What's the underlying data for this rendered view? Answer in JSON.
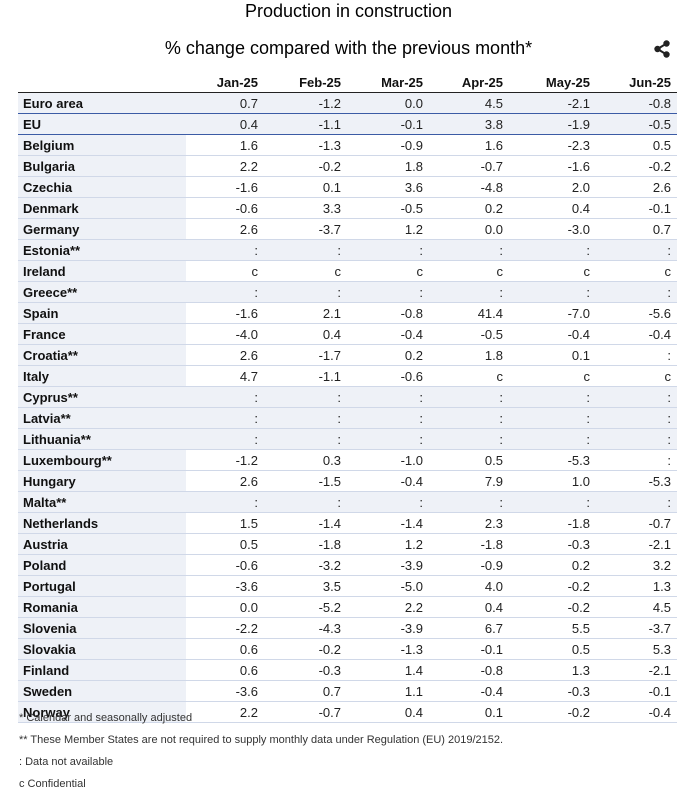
{
  "chart_data": {
    "type": "table",
    "title": "Production in construction",
    "subtitle": "% change compared with the previous month*",
    "columns": [
      "Jan-25",
      "Feb-25",
      "Mar-25",
      "Apr-25",
      "May-25",
      "Jun-25"
    ],
    "rows": [
      {
        "label": "Euro area",
        "values": [
          "0.7",
          "-1.2",
          "0.0",
          "4.5",
          "-2.1",
          "-0.8"
        ]
      },
      {
        "label": "EU",
        "values": [
          "0.4",
          "-1.1",
          "-0.1",
          "3.8",
          "-1.9",
          "-0.5"
        ]
      },
      {
        "label": "Belgium",
        "values": [
          "1.6",
          "-1.3",
          "-0.9",
          "1.6",
          "-2.3",
          "0.5"
        ]
      },
      {
        "label": "Bulgaria",
        "values": [
          "2.2",
          "-0.2",
          "1.8",
          "-0.7",
          "-1.6",
          "-0.2"
        ]
      },
      {
        "label": "Czechia",
        "values": [
          "-1.6",
          "0.1",
          "3.6",
          "-4.8",
          "2.0",
          "2.6"
        ]
      },
      {
        "label": "Denmark",
        "values": [
          "-0.6",
          "3.3",
          "-0.5",
          "0.2",
          "0.4",
          "-0.1"
        ]
      },
      {
        "label": "Germany",
        "values": [
          "2.6",
          "-3.7",
          "1.2",
          "0.0",
          "-3.0",
          "0.7"
        ]
      },
      {
        "label": "Estonia**",
        "values": [
          ":",
          ":",
          ":",
          ":",
          ":",
          ":"
        ]
      },
      {
        "label": "Ireland",
        "values": [
          "c",
          "c",
          "c",
          "c",
          "c",
          "c"
        ]
      },
      {
        "label": "Greece**",
        "values": [
          ":",
          ":",
          ":",
          ":",
          ":",
          ":"
        ]
      },
      {
        "label": "Spain",
        "values": [
          "-1.6",
          "2.1",
          "-0.8",
          "41.4",
          "-7.0",
          "-5.6"
        ]
      },
      {
        "label": "France",
        "values": [
          "-4.0",
          "0.4",
          "-0.4",
          "-0.5",
          "-0.4",
          "-0.4"
        ]
      },
      {
        "label": "Croatia**",
        "values": [
          "2.6",
          "-1.7",
          "0.2",
          "1.8",
          "0.1",
          ":"
        ]
      },
      {
        "label": "Italy",
        "values": [
          "4.7",
          "-1.1",
          "-0.6",
          "c",
          "c",
          "c"
        ]
      },
      {
        "label": "Cyprus**",
        "values": [
          ":",
          ":",
          ":",
          ":",
          ":",
          ":"
        ]
      },
      {
        "label": "Latvia**",
        "values": [
          ":",
          ":",
          ":",
          ":",
          ":",
          ":"
        ]
      },
      {
        "label": "Lithuania**",
        "values": [
          ":",
          ":",
          ":",
          ":",
          ":",
          ":"
        ]
      },
      {
        "label": "Luxembourg**",
        "values": [
          "-1.2",
          "0.3",
          "-1.0",
          "0.5",
          "-5.3",
          ":"
        ]
      },
      {
        "label": "Hungary",
        "values": [
          "2.6",
          "-1.5",
          "-0.4",
          "7.9",
          "1.0",
          "-5.3"
        ]
      },
      {
        "label": "Malta**",
        "values": [
          ":",
          ":",
          ":",
          ":",
          ":",
          ":"
        ]
      },
      {
        "label": "Netherlands",
        "values": [
          "1.5",
          "-1.4",
          "-1.4",
          "2.3",
          "-1.8",
          "-0.7"
        ]
      },
      {
        "label": "Austria",
        "values": [
          "0.5",
          "-1.8",
          "1.2",
          "-1.8",
          "-0.3",
          "-2.1"
        ]
      },
      {
        "label": "Poland",
        "values": [
          "-0.6",
          "-3.2",
          "-3.9",
          "-0.9",
          "0.2",
          "3.2"
        ]
      },
      {
        "label": "Portugal",
        "values": [
          "-3.6",
          "3.5",
          "-5.0",
          "4.0",
          "-0.2",
          "1.3"
        ]
      },
      {
        "label": "Romania",
        "values": [
          "0.0",
          "-5.2",
          "2.2",
          "0.4",
          "-0.2",
          "4.5"
        ]
      },
      {
        "label": "Slovenia",
        "values": [
          "-2.2",
          "-4.3",
          "-3.9",
          "6.7",
          "5.5",
          "-3.7"
        ]
      },
      {
        "label": "Slovakia",
        "values": [
          "0.6",
          "-0.2",
          "-1.3",
          "-0.1",
          "0.5",
          "5.3"
        ]
      },
      {
        "label": "Finland",
        "values": [
          "0.6",
          "-0.3",
          "1.4",
          "-0.8",
          "1.3",
          "-2.1"
        ]
      },
      {
        "label": "Sweden",
        "values": [
          "-3.6",
          "0.7",
          "1.1",
          "-0.4",
          "-0.3",
          "-0.1"
        ]
      },
      {
        "label": "Norway",
        "values": [
          "2.2",
          "-0.7",
          "0.4",
          "0.1",
          "-0.2",
          "-0.4"
        ]
      }
    ],
    "notes": [
      "*  Calendar and seasonally adjusted",
      "** These Member States are not required to supply monthly data under Regulation (EU) 2019/2152.",
      ":   Data not available",
      "c Confidential"
    ]
  },
  "icons": {
    "share": "share-icon"
  }
}
